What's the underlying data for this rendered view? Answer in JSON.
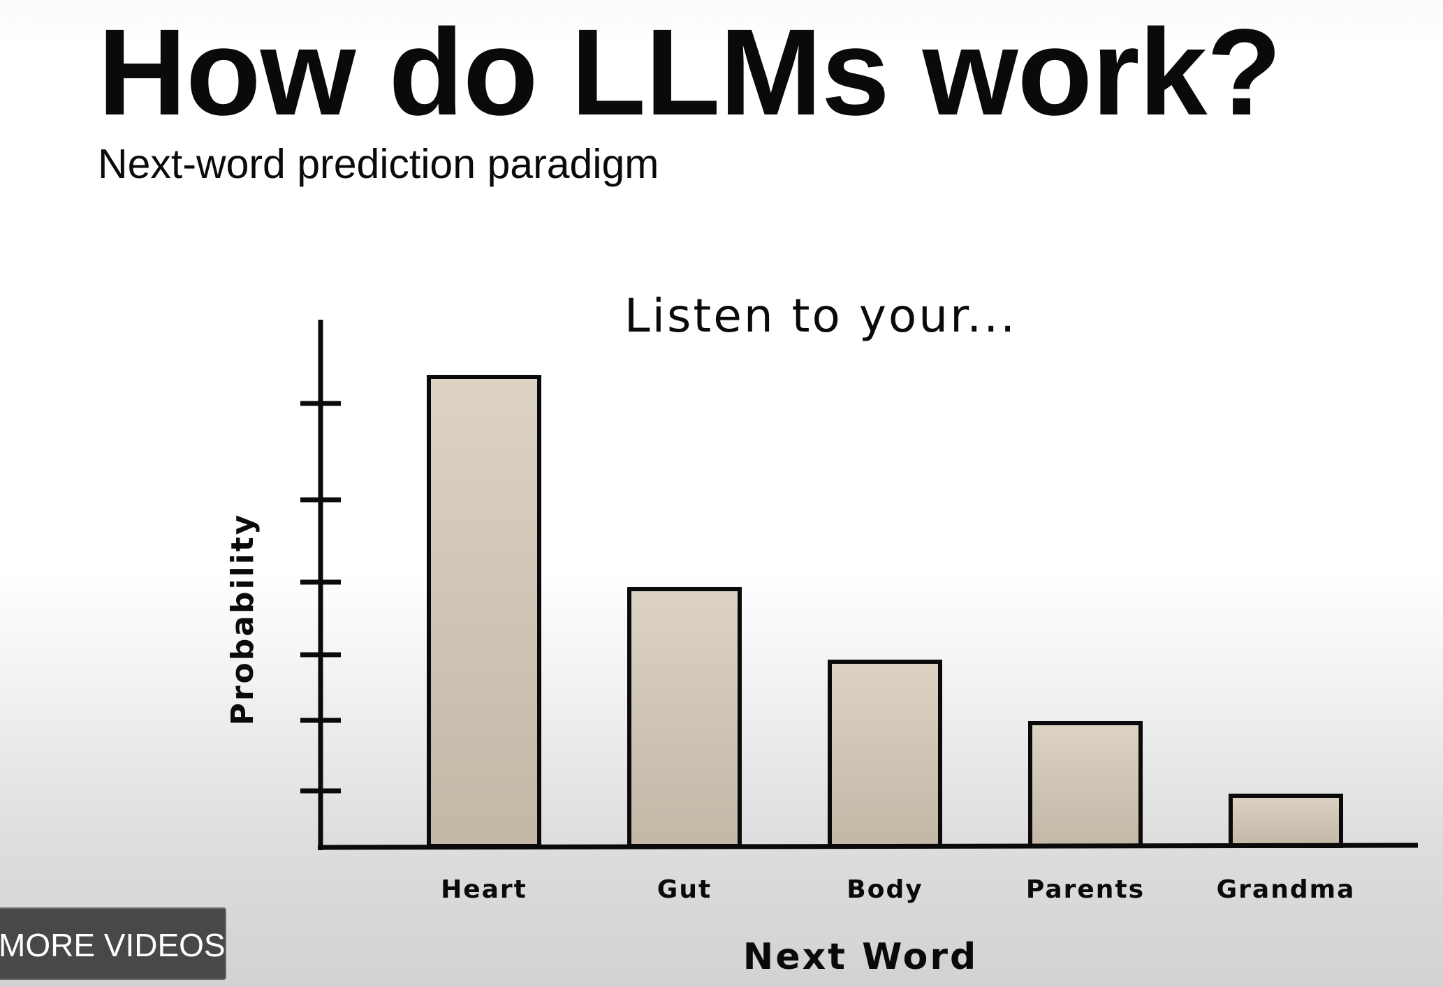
{
  "slide": {
    "title": "How do LLMs work?",
    "subtitle": "Next-word prediction paradigm"
  },
  "overlay": {
    "more_videos_label": "MORE VIDEOS"
  },
  "colors": {
    "bar_fill_top": "#dcd3c4",
    "bar_fill_bottom": "#c3b7a6",
    "ink": "#0a0a0a"
  },
  "chart_data": {
    "type": "bar",
    "title": "Listen to your...",
    "xlabel": "Next Word",
    "ylabel": "Probability",
    "categories": [
      "Heart",
      "Gut",
      "Body",
      "Parents",
      "Grandma"
    ],
    "values": [
      0.42,
      0.23,
      0.165,
      0.11,
      0.045
    ],
    "ylim": [
      0,
      0.5
    ],
    "grid": false,
    "legend": "none"
  }
}
